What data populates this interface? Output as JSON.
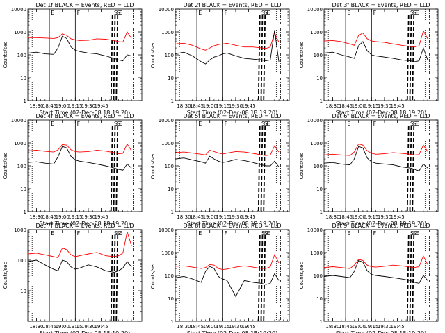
{
  "panel_template": {
    "title_suffix": "BLACK = Events, RED = LLD",
    "ylabel": "Counts/sec",
    "xlabel": "Start Time (02-Dec-08 18:19:20)",
    "xticks": [
      "18:30",
      "18:45",
      "19:00",
      "19:15",
      "19:30",
      "19:45"
    ],
    "marker_letters": [
      "E",
      "F",
      "S",
      "S",
      "E"
    ]
  },
  "series_colors": {
    "events": "#000000",
    "lld": "#ff0000"
  },
  "chart_data": [
    {
      "type": "line",
      "title": "Det 1f BLACK = Events, RED = LLD",
      "y_log": true,
      "ylim": [
        1,
        10000
      ],
      "yticks": [
        "1",
        "10",
        "100",
        "1000",
        "10000"
      ],
      "x_minutes_since_start": [
        0,
        10,
        20,
        30,
        35,
        40,
        45,
        50,
        55,
        60,
        70,
        80,
        90,
        100,
        105,
        110,
        115,
        120
      ],
      "series": [
        {
          "key": "lld",
          "values": [
            560,
            560,
            540,
            520,
            560,
            820,
            700,
            500,
            450,
            420,
            430,
            500,
            480,
            420,
            380,
            360,
            1000,
            520
          ]
        },
        {
          "key": "events",
          "values": [
            120,
            130,
            110,
            105,
            200,
            650,
            520,
            220,
            160,
            140,
            120,
            110,
            90,
            70,
            60,
            55,
            100,
            90
          ]
        }
      ]
    },
    {
      "type": "line",
      "title": "Det 2f BLACK = Events, RED = LLD",
      "y_log": true,
      "ylim": [
        1,
        10000
      ],
      "yticks": [
        "1",
        "10",
        "100",
        "1000",
        "10000"
      ],
      "x_minutes_since_start": [
        0,
        10,
        20,
        30,
        35,
        40,
        45,
        50,
        55,
        60,
        70,
        80,
        90,
        100,
        105,
        110,
        115,
        120
      ],
      "series": [
        {
          "key": "lld",
          "values": [
            300,
            320,
            260,
            180,
            160,
            200,
            250,
            280,
            300,
            320,
            260,
            220,
            220,
            200,
            190,
            220,
            900,
            350
          ]
        },
        {
          "key": "events",
          "values": [
            110,
            130,
            90,
            50,
            40,
            60,
            80,
            90,
            110,
            120,
            90,
            70,
            65,
            60,
            55,
            60,
            1200,
            50
          ]
        }
      ]
    },
    {
      "type": "line",
      "title": "Det 3f BLACK = Events, RED = LLD",
      "y_log": true,
      "ylim": [
        1,
        10000
      ],
      "yticks": [
        "1",
        "10",
        "100",
        "1000",
        "10000"
      ],
      "x_minutes_since_start": [
        0,
        10,
        20,
        30,
        35,
        40,
        45,
        50,
        55,
        60,
        70,
        80,
        90,
        100,
        105,
        110,
        115,
        120
      ],
      "series": [
        {
          "key": "lld",
          "values": [
            400,
            420,
            380,
            300,
            260,
            700,
            900,
            500,
            400,
            380,
            350,
            300,
            260,
            230,
            220,
            250,
            1100,
            500
          ]
        },
        {
          "key": "events",
          "values": [
            120,
            130,
            100,
            80,
            70,
            250,
            380,
            150,
            100,
            90,
            80,
            70,
            60,
            55,
            50,
            55,
            200,
            60
          ]
        }
      ]
    },
    {
      "type": "line",
      "title": "Det 4f BLACK = Events, RED = LLD",
      "y_log": true,
      "ylim": [
        1,
        10000
      ],
      "yticks": [
        "1",
        "10",
        "100",
        "1000",
        "10000"
      ],
      "x_minutes_since_start": [
        0,
        10,
        20,
        30,
        35,
        40,
        45,
        50,
        55,
        60,
        70,
        80,
        90,
        100,
        105,
        110,
        115,
        120
      ],
      "series": [
        {
          "key": "lld",
          "values": [
            450,
            480,
            430,
            400,
            500,
            850,
            800,
            500,
            420,
            400,
            420,
            480,
            440,
            380,
            340,
            350,
            900,
            450
          ]
        },
        {
          "key": "events",
          "values": [
            140,
            150,
            130,
            120,
            250,
            700,
            600,
            260,
            180,
            160,
            140,
            120,
            100,
            80,
            70,
            65,
            120,
            80
          ]
        }
      ]
    },
    {
      "type": "line",
      "title": "Det 5f BLACK = Events, RED = LLD",
      "y_log": true,
      "ylim": [
        1,
        10000
      ],
      "yticks": [
        "1",
        "10",
        "100",
        "1000",
        "10000"
      ],
      "x_minutes_since_start": [
        0,
        10,
        20,
        30,
        35,
        40,
        45,
        50,
        55,
        60,
        70,
        80,
        90,
        100,
        105,
        110,
        115,
        120
      ],
      "series": [
        {
          "key": "lld",
          "values": [
            380,
            400,
            360,
            320,
            300,
            480,
            420,
            360,
            330,
            360,
            420,
            400,
            350,
            300,
            280,
            300,
            750,
            400
          ]
        },
        {
          "key": "events",
          "values": [
            200,
            220,
            180,
            150,
            130,
            260,
            200,
            160,
            140,
            150,
            190,
            170,
            140,
            110,
            100,
            100,
            160,
            90
          ]
        }
      ]
    },
    {
      "type": "line",
      "title": "Det 6f BLACK = Events, RED = LLD",
      "y_log": true,
      "ylim": [
        1,
        10000
      ],
      "yticks": [
        "1",
        "10",
        "100",
        "1000",
        "10000"
      ],
      "x_minutes_since_start": [
        0,
        10,
        20,
        30,
        35,
        40,
        45,
        50,
        55,
        60,
        70,
        80,
        90,
        100,
        105,
        110,
        115,
        120
      ],
      "series": [
        {
          "key": "lld",
          "values": [
            300,
            320,
            300,
            280,
            400,
            900,
            800,
            450,
            350,
            320,
            340,
            380,
            350,
            320,
            300,
            310,
            800,
            420
          ]
        },
        {
          "key": "events",
          "values": [
            130,
            140,
            120,
            110,
            200,
            700,
            600,
            220,
            150,
            130,
            120,
            110,
            90,
            80,
            70,
            60,
            120,
            80
          ]
        }
      ]
    },
    {
      "type": "line",
      "title": "Det 7f BLACK = Events, RED = LLD",
      "y_log": true,
      "ylim": [
        1,
        1000
      ],
      "yticks": [
        "10",
        "100",
        "1000"
      ],
      "x_minutes_since_start": [
        0,
        10,
        20,
        30,
        35,
        40,
        45,
        50,
        55,
        60,
        70,
        80,
        90,
        100,
        105,
        110,
        115,
        120
      ],
      "series": [
        {
          "key": "lld",
          "values": [
            160,
            170,
            150,
            130,
            120,
            250,
            220,
            150,
            130,
            140,
            160,
            180,
            140,
            130,
            140,
            170,
            850,
            300
          ]
        },
        {
          "key": "events",
          "values": [
            90,
            100,
            70,
            50,
            45,
            100,
            90,
            60,
            50,
            55,
            70,
            60,
            45,
            40,
            45,
            55,
            90,
            60
          ]
        }
      ]
    },
    {
      "type": "line",
      "title": "Det 8f BLACK = Events, RED = LLD",
      "y_log": true,
      "ylim": [
        1,
        10000
      ],
      "yticks": [
        "1",
        "10",
        "100",
        "1000",
        "10000"
      ],
      "x_minutes_since_start": [
        0,
        10,
        20,
        30,
        35,
        40,
        45,
        50,
        55,
        60,
        70,
        80,
        90,
        100,
        105,
        110,
        115,
        120
      ],
      "series": [
        {
          "key": "lld",
          "values": [
            250,
            260,
            230,
            200,
            220,
            300,
            280,
            200,
            180,
            190,
            230,
            260,
            230,
            200,
            200,
            240,
            800,
            350
          ]
        },
        {
          "key": "events",
          "values": [
            80,
            90,
            70,
            50,
            150,
            250,
            200,
            90,
            70,
            60,
            12,
            60,
            50,
            45,
            40,
            45,
            120,
            60
          ]
        }
      ]
    },
    {
      "type": "line",
      "title": "Det 9f BLACK = Events, RED = LLD",
      "y_log": true,
      "ylim": [
        1,
        10000
      ],
      "yticks": [
        "1",
        "10",
        "100",
        "1000",
        "10000"
      ],
      "x_minutes_since_start": [
        0,
        10,
        20,
        30,
        35,
        40,
        45,
        50,
        55,
        60,
        70,
        80,
        90,
        100,
        105,
        110,
        115,
        120
      ],
      "series": [
        {
          "key": "lld",
          "values": [
            220,
            240,
            220,
            200,
            280,
            500,
            450,
            280,
            240,
            230,
            250,
            280,
            260,
            230,
            220,
            240,
            700,
            300
          ]
        },
        {
          "key": "events",
          "values": [
            90,
            100,
            90,
            80,
            150,
            450,
            380,
            160,
            110,
            100,
            90,
            80,
            70,
            60,
            50,
            45,
            100,
            60
          ]
        }
      ]
    }
  ]
}
